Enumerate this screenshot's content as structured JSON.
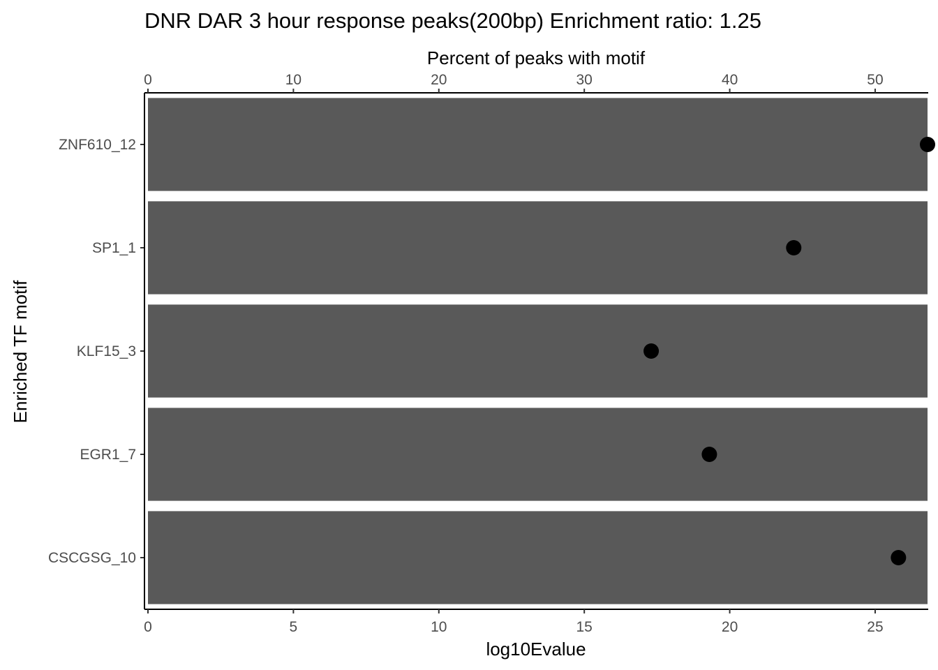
{
  "chart_data": {
    "type": "bar",
    "orientation": "horizontal",
    "title": "DNR DAR 3 hour response peaks(200bp) Enrichment ratio: 1.25",
    "categories": [
      "ZNF610_12",
      "SP1_1",
      "KLF15_3",
      "EGR1_7",
      "CSCGSG_10"
    ],
    "bar_series": {
      "values": [
        26.8,
        26.8,
        26.8,
        26.8,
        26.8
      ],
      "color": "#595959"
    },
    "point_series": {
      "values": [
        53.6,
        44.4,
        34.6,
        38.6,
        51.6
      ],
      "color": "#000000"
    },
    "xlabel_bottom": "log10Evalue",
    "xlabel_top": "Percent of peaks with motif",
    "ylabel": "Enriched TF motif",
    "xlim_bottom": [
      0,
      26.8
    ],
    "xlim_top": [
      0,
      53.6
    ],
    "xticks_bottom": [
      0,
      5,
      10,
      15,
      20,
      25
    ],
    "xticks_top": [
      0,
      10,
      20,
      30,
      40,
      50
    ],
    "grid": false
  }
}
